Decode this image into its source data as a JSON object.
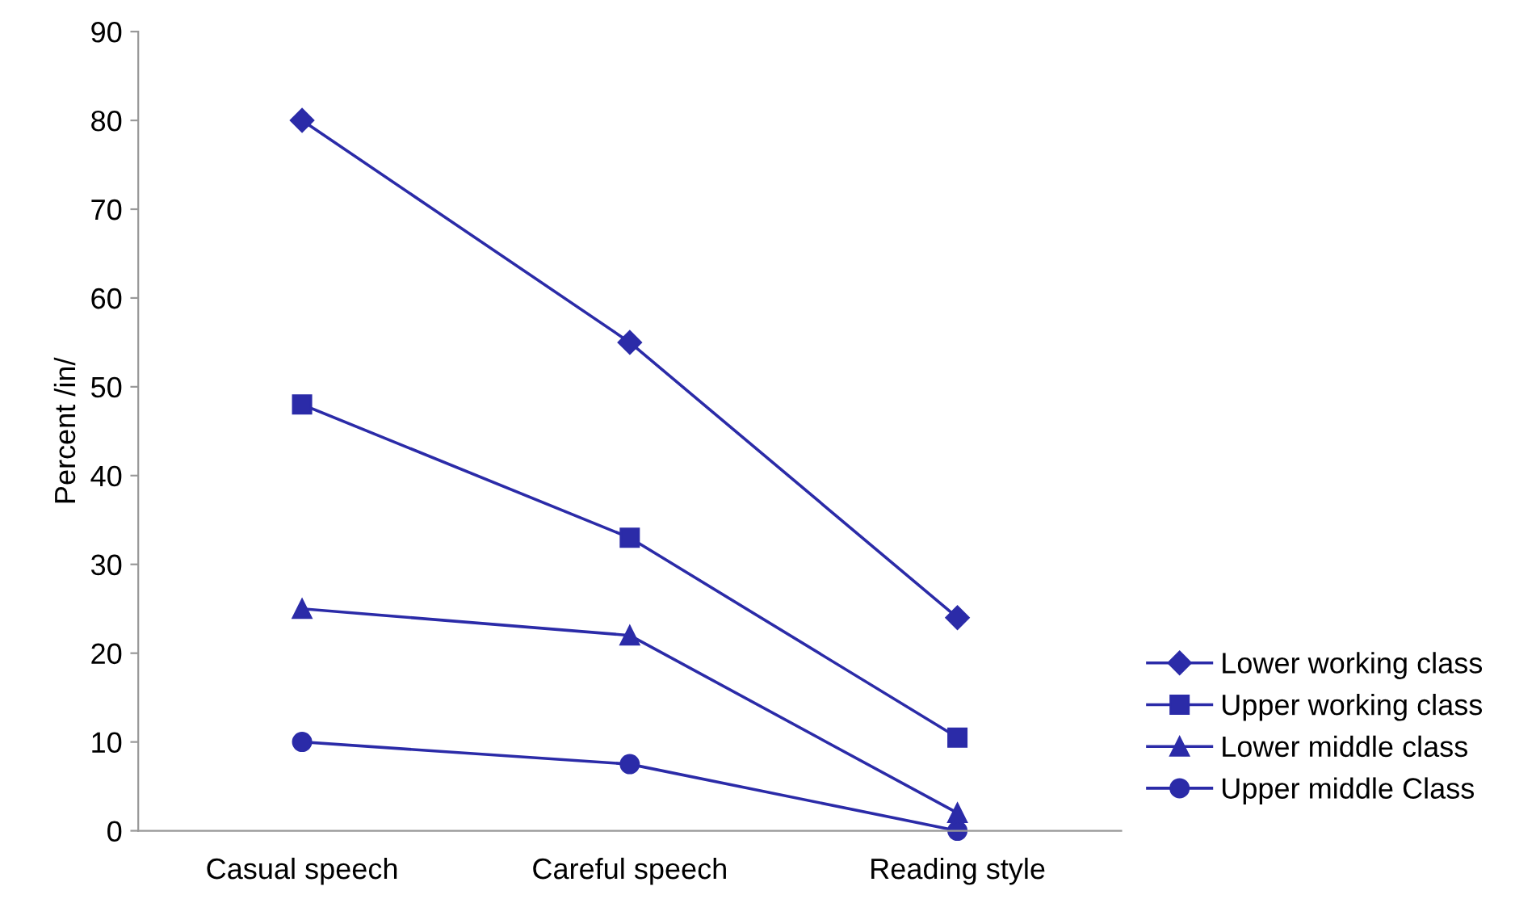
{
  "chart_data": {
    "type": "line",
    "ylabel": "Percent /in/",
    "categories": [
      "Casual speech",
      "Careful speech",
      "Reading style"
    ],
    "series": [
      {
        "name": "Lower working class",
        "color": "#2b2ba8",
        "marker": "diamond",
        "values": [
          80,
          55,
          24
        ]
      },
      {
        "name": "Upper working class",
        "color": "#2b2ba8",
        "marker": "square",
        "values": [
          48,
          33,
          10.5
        ]
      },
      {
        "name": "Lower middle class",
        "color": "#2b2ba8",
        "marker": "triangle",
        "values": [
          25,
          22,
          2
        ]
      },
      {
        "name": "Upper middle Class",
        "color": "#2b2ba8",
        "marker": "circle",
        "values": [
          10,
          7.5,
          0
        ]
      }
    ],
    "ylim": [
      0,
      90
    ],
    "yticks": [
      0,
      10,
      20,
      30,
      40,
      50,
      60,
      70,
      80,
      90
    ],
    "grid": false,
    "legend": "right",
    "line_style": "solid"
  }
}
